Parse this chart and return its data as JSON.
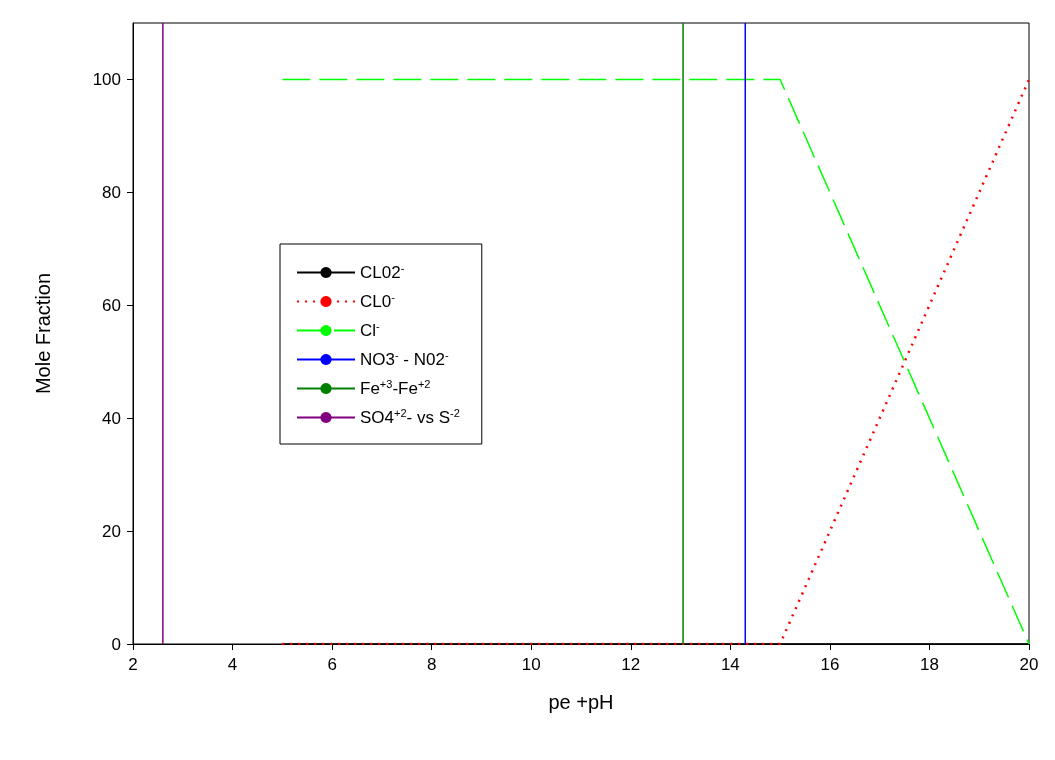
{
  "chart_data": {
    "type": "line",
    "xlabel": "pe +pH",
    "ylabel": "Mole Fraction",
    "xlim": [
      2,
      20
    ],
    "ylim": [
      0,
      110
    ],
    "xticks": [
      2,
      4,
      6,
      8,
      10,
      12,
      14,
      16,
      18,
      20
    ],
    "yticks": [
      0,
      20,
      40,
      60,
      80,
      100
    ],
    "grid": false,
    "legend": "left",
    "marker": "none",
    "series": [
      {
        "name": "CL02$^{-}$",
        "color": "#000000",
        "line_style": "solid",
        "x": [
          5,
          20
        ],
        "values": [
          0,
          0
        ]
      },
      {
        "name": "CL0$^{-}$",
        "color": "#ff0000",
        "line_style": "dotted",
        "x": [
          5,
          15,
          20
        ],
        "values": [
          0,
          0,
          100
        ]
      },
      {
        "name": "Cl$^{-}$",
        "color": "#00ff00",
        "line_style": "dashed",
        "x": [
          5,
          15,
          20
        ],
        "values": [
          100,
          100,
          0
        ]
      },
      {
        "name": "NO3$^{-}$ - N02$^{-}$",
        "color": "#0000ff",
        "line_style": "solid",
        "x": [
          14.3,
          14.3
        ],
        "values": [
          0,
          110
        ]
      },
      {
        "name": "Fe$^{+3}$-Fe$^{+2}$",
        "color": "#008000",
        "line_style": "solid",
        "x": [
          13.05,
          13.05
        ],
        "values": [
          0,
          110
        ]
      },
      {
        "name": "SO4$^{+2}$- vs S$^{-2}$",
        "color": "#800080",
        "line_style": "solid",
        "x": [
          2.6,
          2.6
        ],
        "values": [
          0,
          110
        ]
      }
    ]
  }
}
